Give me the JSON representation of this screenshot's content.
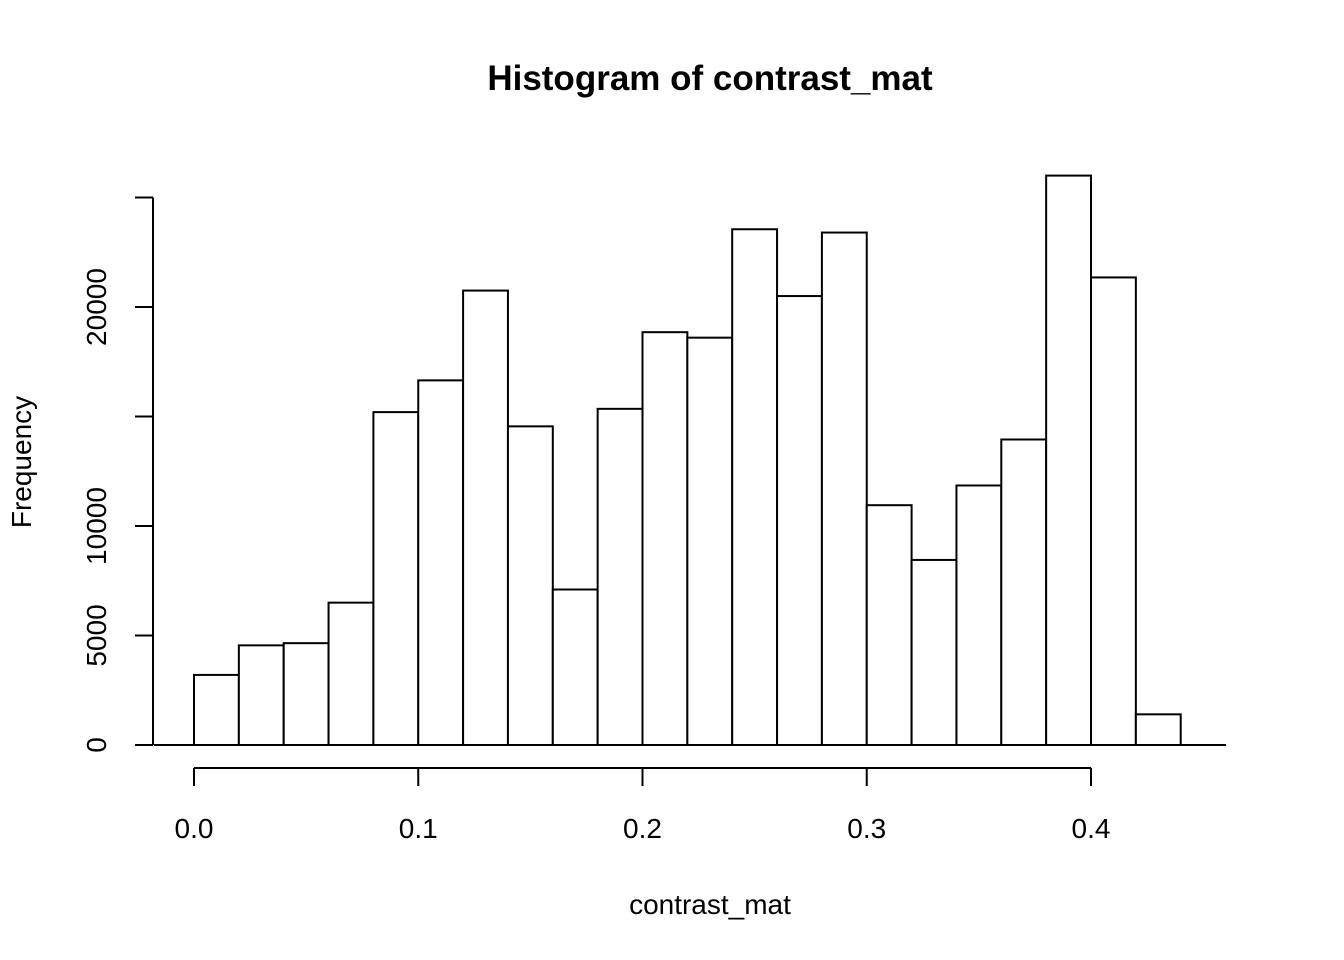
{
  "chart_data": {
    "type": "bar",
    "title": "Histogram of contrast_mat",
    "xlabel": "contrast_mat",
    "ylabel": "Frequency",
    "bin_width": 0.02,
    "bins": [
      {
        "x0": 0.0,
        "x1": 0.02,
        "count": 3200
      },
      {
        "x0": 0.02,
        "x1": 0.04,
        "count": 4550
      },
      {
        "x0": 0.04,
        "x1": 0.06,
        "count": 4650
      },
      {
        "x0": 0.06,
        "x1": 0.08,
        "count": 6500
      },
      {
        "x0": 0.08,
        "x1": 0.1,
        "count": 15200
      },
      {
        "x0": 0.1,
        "x1": 0.12,
        "count": 16650
      },
      {
        "x0": 0.12,
        "x1": 0.14,
        "count": 20750
      },
      {
        "x0": 0.14,
        "x1": 0.16,
        "count": 14550
      },
      {
        "x0": 0.16,
        "x1": 0.18,
        "count": 7100
      },
      {
        "x0": 0.18,
        "x1": 0.2,
        "count": 15350
      },
      {
        "x0": 0.2,
        "x1": 0.22,
        "count": 18850
      },
      {
        "x0": 0.22,
        "x1": 0.24,
        "count": 18600
      },
      {
        "x0": 0.24,
        "x1": 0.26,
        "count": 23550
      },
      {
        "x0": 0.26,
        "x1": 0.28,
        "count": 20500
      },
      {
        "x0": 0.28,
        "x1": 0.3,
        "count": 23400
      },
      {
        "x0": 0.3,
        "x1": 0.32,
        "count": 10950
      },
      {
        "x0": 0.32,
        "x1": 0.34,
        "count": 8450
      },
      {
        "x0": 0.34,
        "x1": 0.36,
        "count": 11850
      },
      {
        "x0": 0.36,
        "x1": 0.38,
        "count": 13950
      },
      {
        "x0": 0.38,
        "x1": 0.4,
        "count": 26000
      },
      {
        "x0": 0.4,
        "x1": 0.42,
        "count": 21350
      },
      {
        "x0": 0.42,
        "x1": 0.44,
        "count": 1400
      }
    ],
    "xlim": [
      0.0,
      0.46
    ],
    "ylim": [
      0,
      25000
    ],
    "x_ticks": [
      0.0,
      0.1,
      0.2,
      0.3,
      0.4
    ],
    "x_tick_labels": [
      "0.0",
      "0.1",
      "0.2",
      "0.3",
      "0.4"
    ],
    "y_ticks": [
      0,
      5000,
      10000,
      15000,
      20000,
      25000
    ],
    "y_tick_labels": [
      "0",
      "5000",
      "10000",
      "",
      "20000",
      ""
    ],
    "grid": false,
    "colors": {
      "bar_fill": "#ffffff",
      "bar_stroke": "#000000"
    }
  }
}
